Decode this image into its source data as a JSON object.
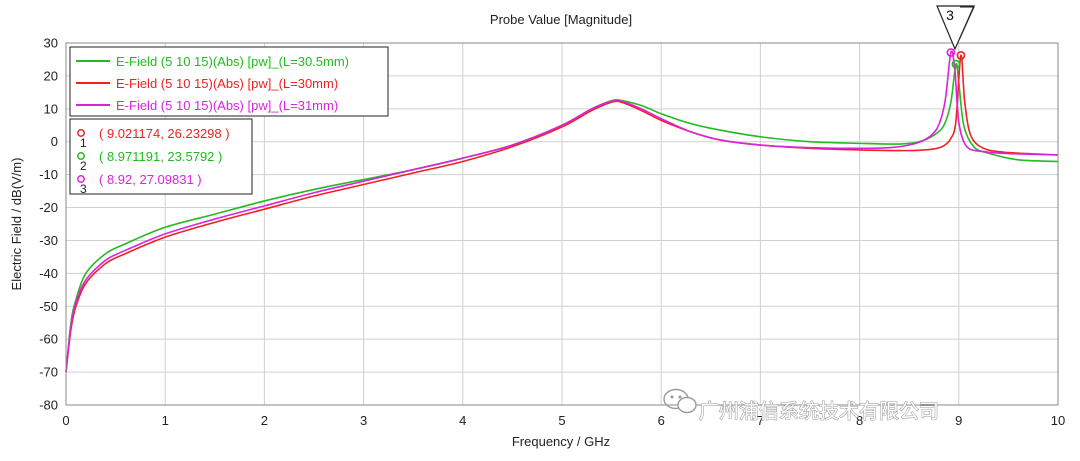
{
  "chart_data": {
    "type": "line",
    "title": "Probe Value [Magnitude]",
    "xlabel": "Frequency / GHz",
    "ylabel": "Electric Field / dB(V/m)",
    "xlim": [
      0,
      10
    ],
    "ylim": [
      -80,
      30
    ],
    "x_ticks": [
      "0",
      "1",
      "2",
      "3",
      "4",
      "5",
      "6",
      "7",
      "8",
      "9",
      "10"
    ],
    "y_ticks": [
      "30",
      "20",
      "10",
      "0",
      "-10",
      "-20",
      "-30",
      "-40",
      "-50",
      "-60",
      "-70",
      "-80"
    ],
    "grid": true,
    "legend_position": "top-left",
    "series": [
      {
        "name": "E-Field (5 10 15)(Abs) [pw]_(L=30.5mm)",
        "color": "#22bb22",
        "x": [
          0.0,
          0.05,
          0.1,
          0.2,
          0.4,
          0.6,
          1.0,
          1.5,
          2.0,
          2.5,
          3.0,
          3.5,
          4.0,
          4.5,
          5.0,
          5.3,
          5.5,
          5.6,
          5.8,
          6.0,
          6.3,
          6.6,
          7.0,
          7.5,
          8.0,
          8.4,
          8.6,
          8.75,
          8.85,
          8.92,
          8.971,
          9.0,
          9.05,
          9.15,
          9.3,
          9.6,
          10.0
        ],
        "y": [
          -70,
          -55,
          -48,
          -40,
          -34,
          -31,
          -26,
          -22,
          -18,
          -14.5,
          -11.5,
          -8.5,
          -5,
          -1,
          5,
          10,
          12.5,
          12.5,
          11,
          8.5,
          5.5,
          3.5,
          1.5,
          0,
          -0.5,
          -0.7,
          0,
          2,
          5,
          12,
          23.58,
          18,
          5,
          -1.5,
          -3.5,
          -5.5,
          -6
        ]
      },
      {
        "name": "E-Field (5 10 15)(Abs) [pw]_(L=30mm)",
        "color": "#ee2222",
        "x": [
          0.0,
          0.05,
          0.1,
          0.2,
          0.4,
          0.6,
          1.0,
          1.5,
          2.0,
          2.5,
          3.0,
          3.5,
          4.0,
          4.5,
          5.0,
          5.3,
          5.5,
          5.6,
          5.8,
          6.0,
          6.3,
          6.6,
          7.0,
          7.5,
          8.0,
          8.4,
          8.6,
          8.75,
          8.85,
          8.92,
          8.97,
          9.021,
          9.06,
          9.12,
          9.25,
          9.5,
          10.0
        ],
        "y": [
          -70,
          -57,
          -50,
          -43,
          -37,
          -34,
          -29,
          -24.5,
          -20.5,
          -16.5,
          -13,
          -9.5,
          -6,
          -1.5,
          4.5,
          9.5,
          12,
          12,
          9.5,
          6.5,
          3,
          0.5,
          -1,
          -2,
          -2.5,
          -2.7,
          -2.6,
          -2.2,
          -1.2,
          1,
          6,
          26.23,
          12,
          2,
          -2,
          -3.3,
          -4
        ]
      },
      {
        "name": "E-Field (5 10 15)(Abs) [pw]_(L=31mm)",
        "color": "#dd22dd",
        "x": [
          0.0,
          0.05,
          0.1,
          0.2,
          0.4,
          0.6,
          1.0,
          1.5,
          2.0,
          2.5,
          3.0,
          3.5,
          4.0,
          4.5,
          5.0,
          5.3,
          5.5,
          5.6,
          5.8,
          6.0,
          6.3,
          6.6,
          7.0,
          7.5,
          8.0,
          8.3,
          8.5,
          8.65,
          8.78,
          8.86,
          8.92,
          8.96,
          9.0,
          9.08,
          9.25,
          9.5,
          10.0
        ],
        "y": [
          -70,
          -56,
          -49,
          -42,
          -36,
          -33,
          -28,
          -23.5,
          -19.5,
          -15.5,
          -12,
          -8.5,
          -5,
          -1,
          5,
          10,
          12.3,
          12.3,
          10,
          7,
          3,
          0.5,
          -1,
          -1.8,
          -2,
          -1.8,
          -1,
          0.5,
          4,
          12,
          27.1,
          22,
          6,
          -1.5,
          -3,
          -3.6,
          -4
        ]
      }
    ],
    "markers": [
      {
        "id": "1",
        "label": "( 9.021174, 26.23298 )",
        "x": 9.021174,
        "y": 26.23298,
        "color": "#ee2222"
      },
      {
        "id": "2",
        "label": "( 8.971191, 23.5792 )",
        "x": 8.971191,
        "y": 23.5792,
        "color": "#22bb22"
      },
      {
        "id": "3",
        "label": "( 8.92, 27.09831 )",
        "x": 8.92,
        "y": 27.09831,
        "color": "#dd22dd"
      }
    ],
    "peak_callout": "3"
  },
  "watermark": {
    "text": "广州浦信系统技术有限公司",
    "icon": "wechat-icon"
  }
}
